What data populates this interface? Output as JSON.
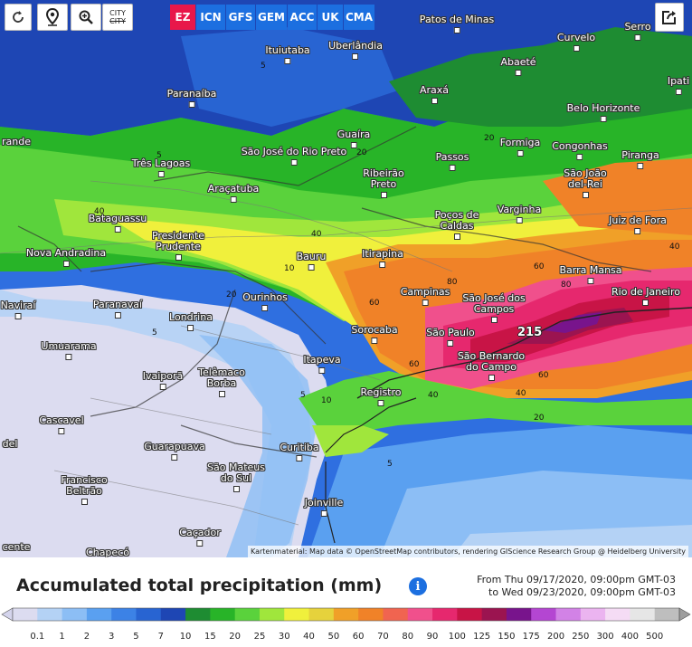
{
  "toolbar": {
    "buttons": [
      {
        "name": "refresh-button",
        "icon": "refresh-icon"
      },
      {
        "name": "location-button",
        "icon": "location-pin-icon"
      },
      {
        "name": "zoom-button",
        "icon": "zoom-icon"
      },
      {
        "name": "city-toggle-button",
        "icon": "city-icon",
        "label_top": "CITY",
        "label_bottom": "CITY"
      }
    ],
    "models": [
      {
        "label": "EZ",
        "active": true
      },
      {
        "label": "ICN",
        "active": false
      },
      {
        "label": "GFS",
        "active": false
      },
      {
        "label": "GEM",
        "active": false
      },
      {
        "label": "ACC",
        "active": false
      },
      {
        "label": "UK",
        "active": false
      },
      {
        "label": "CMA",
        "active": false
      }
    ],
    "active_color": "#e8174a",
    "inactive_color": "#1c6fe0",
    "share_icon": "share-icon"
  },
  "cities": [
    "Patos de Minas",
    "Serro",
    "Curvelo",
    "Uberlândia",
    "Ituiutaba",
    "Abaeté",
    "Paranaíba",
    "Ipati",
    "Araxá",
    "Belo Horizonte",
    "rande",
    "Guaíra",
    "Formiga",
    "Congonhas",
    "São José do Rio Preto",
    "Passos",
    "Três Lagoas",
    "Piranga",
    "Ribeirão Preto",
    "São João del-Rei",
    "Araçatuba",
    "Varginha",
    "Poços de Caldas",
    "Juiz de Fora",
    "Bataguassu",
    "Presidente Prudente",
    "Nova Andradina",
    "Itirapina",
    "Bauru",
    "Barra Mansa",
    "Campinas",
    "Rio de Janeiro",
    "Ourinhos",
    "São José dos Campos",
    "Naviraí",
    "Paranavaí",
    "Londrina",
    "Sorocaba",
    "São Paulo",
    "Umuarama",
    "São Bernardo do Campo",
    "Itapeva",
    "Ivaiporã",
    "Telêmaco Borba",
    "Registro",
    "Cascavel",
    "del",
    "Guarapuava",
    "Curitiba",
    "São Mateus do Sul",
    "Francisco Beltrão",
    "Joinville",
    "Caçador",
    "cente",
    "Chapecó"
  ],
  "contour_labels": [
    "5",
    "5",
    "5",
    "5",
    "5",
    "10",
    "10",
    "20",
    "20",
    "20",
    "20",
    "40",
    "40",
    "40",
    "40",
    "40",
    "60",
    "60",
    "60",
    "60",
    "80",
    "80",
    "215"
  ],
  "attribution": "Kartenmaterial: Map data © OpenStreetMap contributors, rendering GIScience Research Group @ Heidelberg University",
  "title": "Accumulated total precipitation (mm)",
  "info_icon": "info-icon",
  "period": {
    "from": "From Thu 09/17/2020, 09:00pm GMT-03",
    "to": "to Wed 09/23/2020, 09:00pm GMT-03"
  },
  "legend": {
    "labels": [
      "0.1",
      "1",
      "2",
      "3",
      "5",
      "7",
      "10",
      "15",
      "20",
      "25",
      "30",
      "40",
      "50",
      "60",
      "70",
      "80",
      "90",
      "100",
      "125",
      "150",
      "175",
      "200",
      "250",
      "300",
      "400",
      "500"
    ],
    "colors": [
      "#dcdcf0",
      "#b4d2f5",
      "#8cbef5",
      "#5aa0f0",
      "#3c82e6",
      "#2864d2",
      "#1e46b4",
      "#1e8c32",
      "#28b428",
      "#5ad23c",
      "#a0e63c",
      "#f0f03c",
      "#e6d23c",
      "#f0a028",
      "#f08228",
      "#f06450",
      "#f0508c",
      "#e6286e",
      "#c81446",
      "#9b1450",
      "#78148c",
      "#b446d2",
      "#d282e6",
      "#ebb4f0",
      "#f5dcf5",
      "#e6e6e6",
      "#bebebe"
    ]
  }
}
